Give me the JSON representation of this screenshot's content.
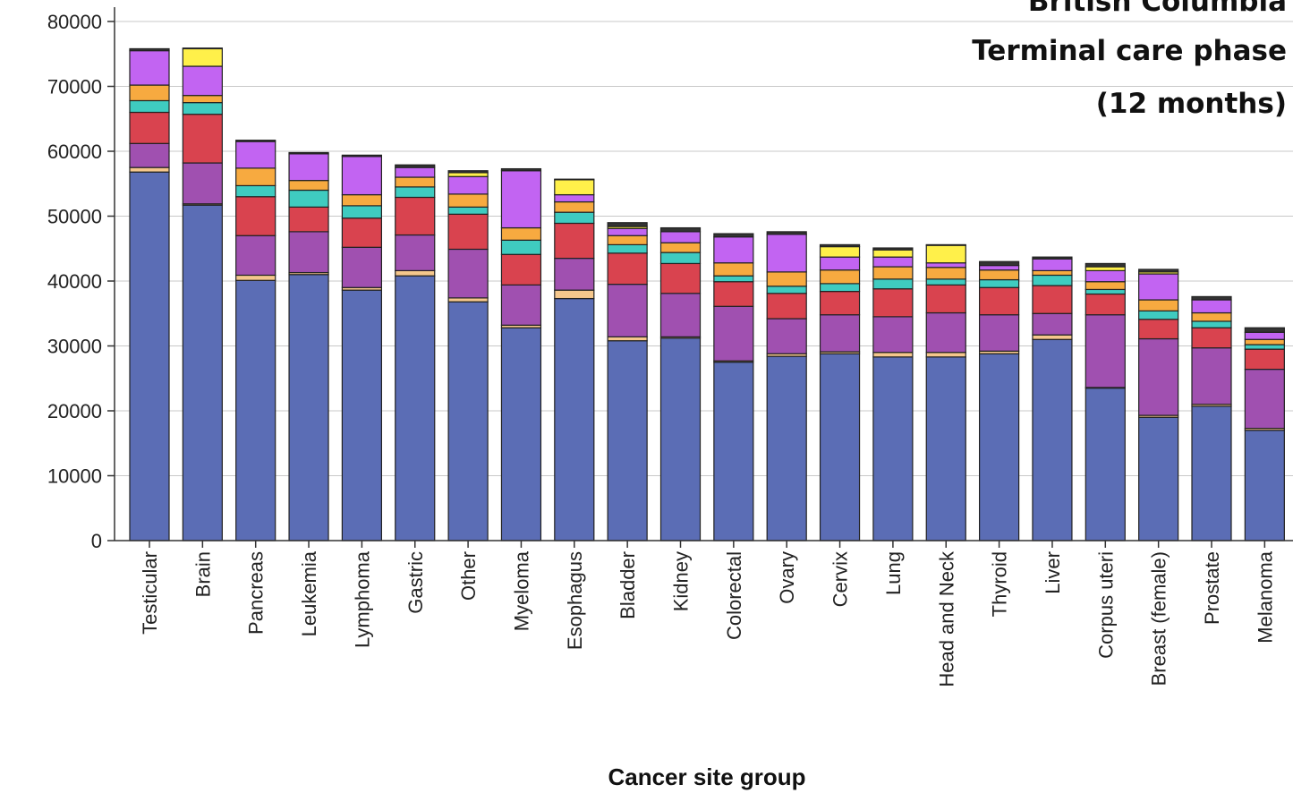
{
  "chart_data": {
    "type": "bar",
    "stacked": true,
    "title_lines": [
      "British Columbia",
      "Terminal care phase",
      "(12 months)"
    ],
    "xlabel": "Cancer site group",
    "ylabel": "",
    "ylim": [
      0,
      80000
    ],
    "yticks": [
      0,
      10000,
      20000,
      30000,
      40000,
      50000,
      60000,
      70000,
      80000
    ],
    "grid": true,
    "categories": [
      "Testicular",
      "Brain",
      "Pancreas",
      "Leukemia",
      "Lymphoma",
      "Gastric",
      "Other",
      "Myeloma",
      "Esophagus",
      "Bladder",
      "Kidney",
      "Colorectal",
      "Ovary",
      "Cervix",
      "Lung",
      "Head and Neck",
      "Thyroid",
      "Liver",
      "Corpus uteri",
      "Breast (female)",
      "Prostate",
      "Melanoma"
    ],
    "series": [
      {
        "color": "#5b6db5",
        "values": [
          56800,
          51700,
          40100,
          41000,
          38600,
          40800,
          36800,
          32800,
          37300,
          30800,
          31200,
          27500,
          28400,
          28800,
          28300,
          28300,
          28800,
          31000,
          23500,
          19000,
          20700,
          17000
        ]
      },
      {
        "color": "#f5c78c",
        "values": [
          700,
          200,
          800,
          300,
          400,
          800,
          600,
          400,
          1300,
          600,
          200,
          200,
          400,
          300,
          700,
          700,
          400,
          700,
          100,
          300,
          300,
          300
        ]
      },
      {
        "color": "#a050b0",
        "values": [
          3700,
          6300,
          6100,
          6300,
          6200,
          5500,
          7500,
          6200,
          4900,
          8100,
          6700,
          8400,
          5400,
          5700,
          5500,
          6100,
          5600,
          3300,
          11200,
          11800,
          8700,
          9100
        ]
      },
      {
        "color": "#d9434f",
        "values": [
          4800,
          7500,
          6000,
          3800,
          4500,
          5800,
          5400,
          4700,
          5400,
          4800,
          4600,
          3800,
          3900,
          3600,
          4300,
          4300,
          4200,
          4300,
          3200,
          3000,
          3100,
          3100
        ]
      },
      {
        "color": "#3fcbc0",
        "values": [
          1800,
          1800,
          1700,
          2600,
          1900,
          1600,
          1100,
          2200,
          1700,
          1300,
          1700,
          900,
          1100,
          1200,
          1500,
          900,
          1200,
          1600,
          700,
          1300,
          1000,
          700
        ]
      },
      {
        "color": "#f7aa40",
        "values": [
          2400,
          1100,
          2700,
          1500,
          1700,
          1500,
          2000,
          1900,
          1600,
          1400,
          1500,
          2000,
          2200,
          2100,
          1900,
          1800,
          1500,
          700,
          1200,
          1700,
          1300,
          800
        ]
      },
      {
        "color": "#c264f2",
        "values": [
          5300,
          4500,
          4100,
          4100,
          5900,
          1500,
          2700,
          8800,
          1100,
          1100,
          1700,
          4000,
          5800,
          2000,
          1500,
          700,
          700,
          1800,
          1700,
          4000,
          2000,
          1100
        ]
      },
      {
        "color": "#fff04a",
        "values": [
          0,
          2700,
          0,
          0,
          0,
          0,
          600,
          0,
          2300,
          300,
          0,
          0,
          0,
          1600,
          1100,
          2700,
          0,
          0,
          600,
          300,
          0,
          0
        ]
      },
      {
        "color": "#333333",
        "values": [
          300,
          100,
          200,
          200,
          200,
          400,
          300,
          300,
          100,
          600,
          600,
          500,
          400,
          300,
          300,
          100,
          600,
          300,
          500,
          400,
          500,
          700
        ]
      }
    ]
  }
}
